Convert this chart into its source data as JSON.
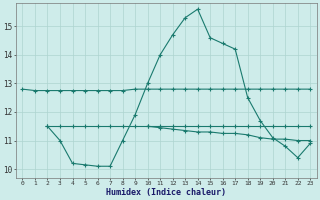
{
  "background_color": "#ceecea",
  "grid_color": "#aed4d0",
  "line_color": "#1a7a6e",
  "x_label": "Humidex (Indice chaleur)",
  "x_ticks": [
    0,
    1,
    2,
    3,
    4,
    5,
    6,
    7,
    8,
    9,
    10,
    11,
    12,
    13,
    14,
    15,
    16,
    17,
    18,
    19,
    20,
    21,
    22,
    23
  ],
  "ylim": [
    9.7,
    15.8
  ],
  "yticks": [
    10,
    11,
    12,
    13,
    14,
    15
  ],
  "line1_x": [
    0,
    1,
    2,
    3,
    4,
    5,
    6,
    7,
    8,
    9,
    10,
    11,
    12,
    13,
    14,
    15,
    16,
    17,
    18,
    19,
    20,
    21,
    22,
    23
  ],
  "line1_y": [
    12.8,
    12.75,
    12.75,
    12.75,
    12.75,
    12.75,
    12.75,
    12.75,
    12.75,
    12.8,
    12.8,
    12.8,
    12.8,
    12.8,
    12.8,
    12.8,
    12.8,
    12.8,
    12.8,
    12.8,
    12.8,
    12.8,
    12.8,
    12.8
  ],
  "line2_x": [
    2,
    3,
    4,
    5,
    6,
    7,
    8,
    9,
    10,
    11,
    12,
    13,
    14,
    15,
    16,
    17,
    18,
    19,
    20,
    21,
    22,
    23
  ],
  "line2_y": [
    11.5,
    11.5,
    11.5,
    11.5,
    11.5,
    11.5,
    11.5,
    11.5,
    11.5,
    11.5,
    11.5,
    11.5,
    11.5,
    11.5,
    11.5,
    11.5,
    11.5,
    11.5,
    11.5,
    11.5,
    11.5,
    11.5
  ],
  "line3_x": [
    10,
    11,
    12,
    13,
    14,
    15,
    16,
    17,
    18,
    19,
    20,
    21,
    22,
    23
  ],
  "line3_y": [
    11.5,
    11.45,
    11.4,
    11.35,
    11.3,
    11.3,
    11.25,
    11.25,
    11.2,
    11.1,
    11.05,
    11.05,
    11.0,
    11.0
  ],
  "line4_x": [
    2,
    3,
    4,
    5,
    6,
    7,
    8,
    9,
    10,
    11,
    12,
    13,
    14,
    15,
    16,
    17,
    18,
    19,
    20,
    21,
    22,
    23
  ],
  "line4_y": [
    11.5,
    11.0,
    10.2,
    10.15,
    10.1,
    10.1,
    11.0,
    11.9,
    13.0,
    14.0,
    14.7,
    15.3,
    15.6,
    14.6,
    14.4,
    14.2,
    12.5,
    11.7,
    11.1,
    10.8,
    10.4,
    10.9
  ]
}
